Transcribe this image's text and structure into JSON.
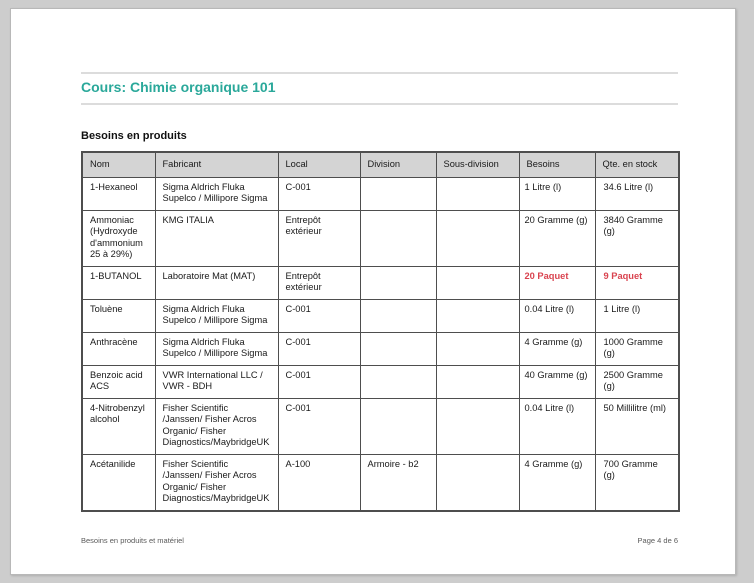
{
  "page": {
    "title": "Cours: Chimie organique 101",
    "section_heading": "Besoins en produits",
    "footer": {
      "left": "Besoins en produits et matériel",
      "right": "Page 4 de 6"
    }
  },
  "colors": {
    "accent_teal": "#2aa89a",
    "alert_red": "#d9434f",
    "table_header_bg": "#d4d4d4",
    "table_border": "#4e4e4e"
  },
  "table": {
    "columns": [
      "Nom",
      "Fabricant",
      "Local",
      "Division",
      "Sous-division",
      "Besoins",
      "Qte. en stock"
    ],
    "rows": [
      {
        "cells": [
          "1-Hexaneol",
          "Sigma Aldrich Fluka Supelco / Millipore Sigma",
          "C-001",
          "",
          "",
          "1 Litre (l)",
          "34.6 Litre (l)"
        ],
        "alert_cells": []
      },
      {
        "cells": [
          "Ammoniac (Hydroxyde d'ammonium 25 à 29%)",
          "KMG ITALIA",
          "Entrepôt extérieur",
          "",
          "",
          "20 Gramme (g)",
          "3840 Gramme (g)"
        ],
        "alert_cells": []
      },
      {
        "cells": [
          "1-BUTANOL",
          "Laboratoire Mat (MAT)",
          "Entrepôt extérieur",
          "",
          "",
          "20 Paquet",
          "9 Paquet"
        ],
        "alert_cells": [
          5,
          6
        ]
      },
      {
        "cells": [
          "Toluène",
          "Sigma Aldrich Fluka Supelco / Millipore Sigma",
          "C-001",
          "",
          "",
          "0.04 Litre (l)",
          "1 Litre (l)"
        ],
        "alert_cells": []
      },
      {
        "cells": [
          "Anthracène",
          "Sigma Aldrich Fluka Supelco / Millipore Sigma",
          "C-001",
          "",
          "",
          "4 Gramme (g)",
          "1000 Gramme (g)"
        ],
        "alert_cells": []
      },
      {
        "cells": [
          "Benzoic acid ACS",
          "VWR International LLC / VWR - BDH",
          "C-001",
          "",
          "",
          "40 Gramme (g)",
          "2500 Gramme (g)"
        ],
        "alert_cells": []
      },
      {
        "cells": [
          "4-Nitrobenzyl alcohol",
          "Fisher Scientific /Janssen/ Fisher Acros Organic/ Fisher Diagnostics/MaybridgeUK",
          "C-001",
          "",
          "",
          "0.04 Litre (l)",
          "50 Millilitre (ml)"
        ],
        "alert_cells": []
      },
      {
        "cells": [
          "Acétanilide",
          "Fisher Scientific /Janssen/ Fisher Acros Organic/ Fisher Diagnostics/MaybridgeUK",
          "A-100",
          "Armoire - b2",
          "",
          "4 Gramme (g)",
          "700 Gramme (g)"
        ],
        "alert_cells": []
      }
    ]
  }
}
